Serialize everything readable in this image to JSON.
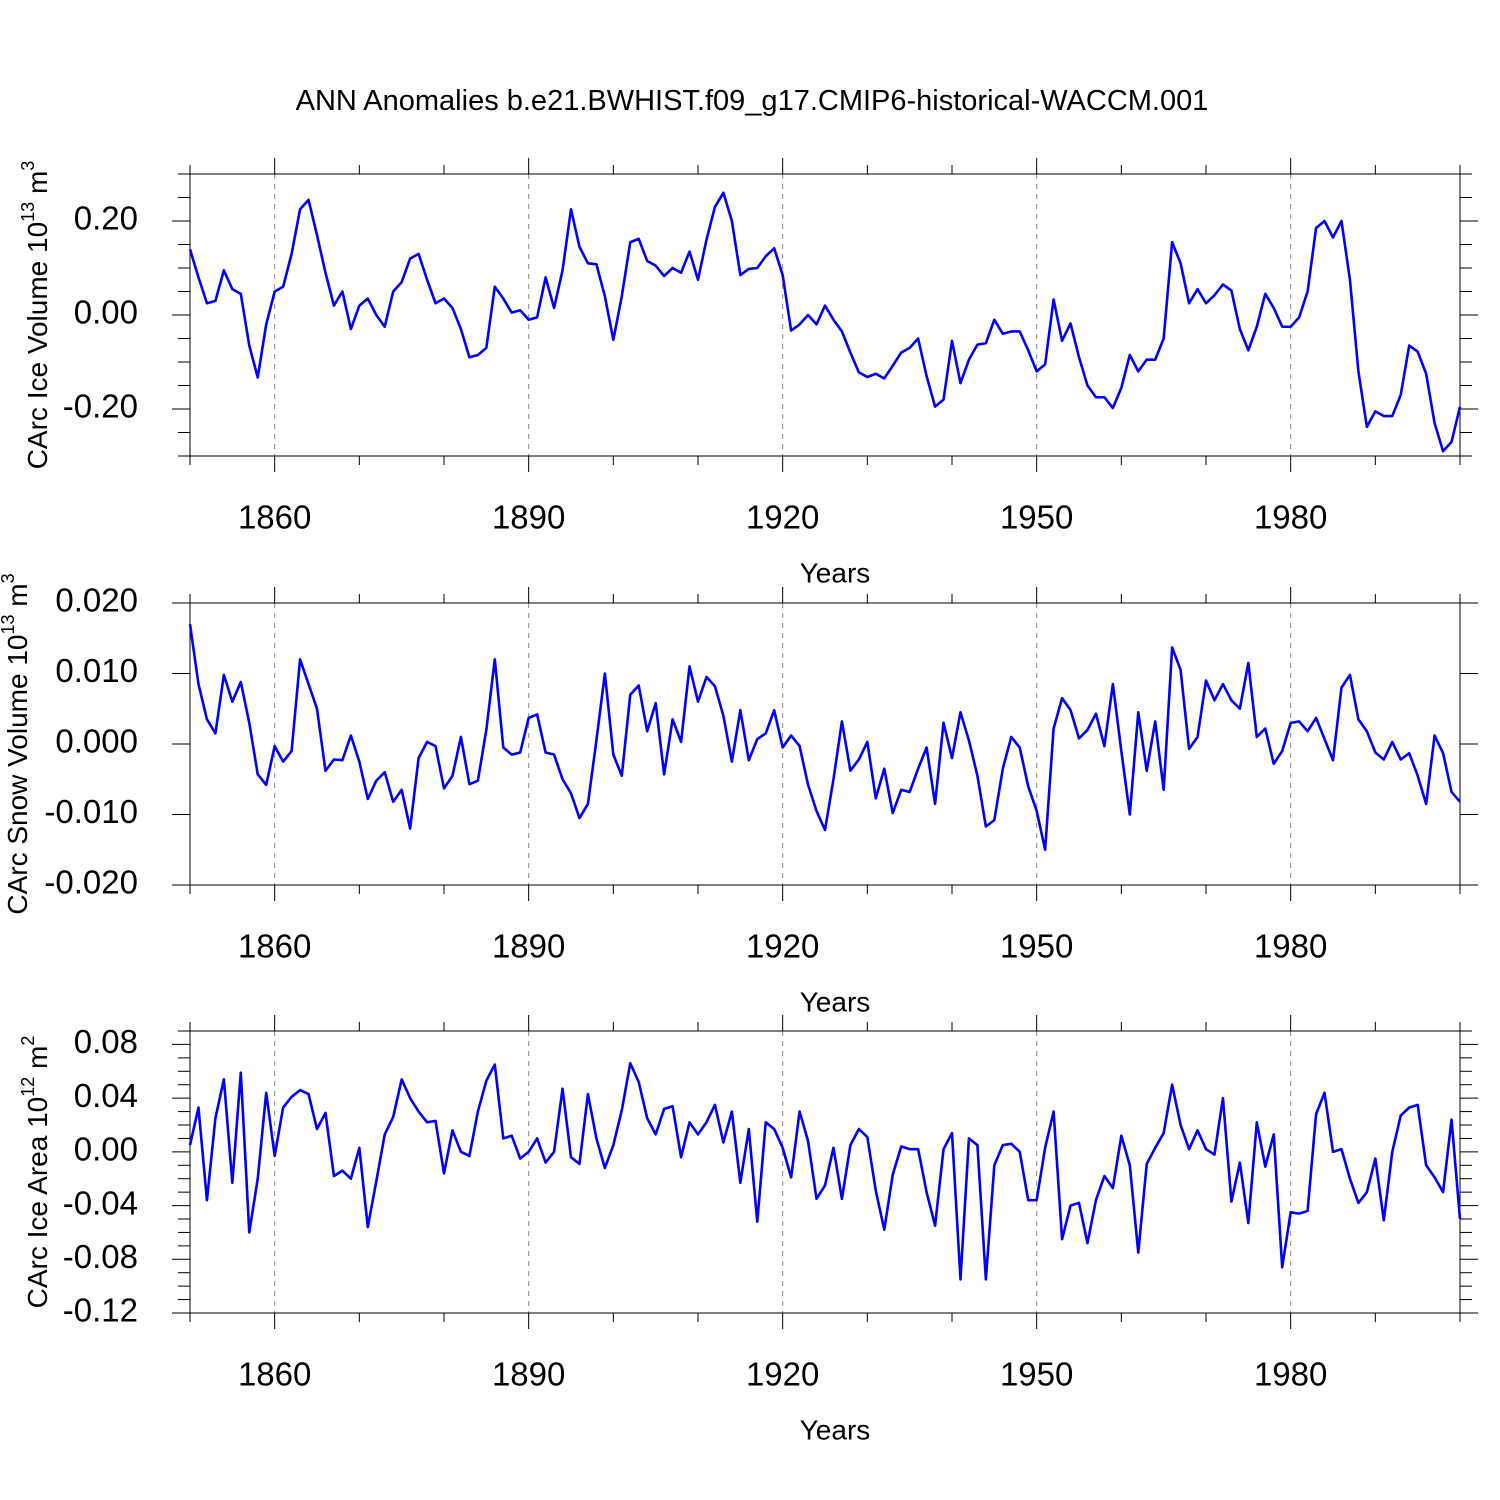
{
  "title": "ANN Anomalies b.e21.BWHIST.f09_g17.CMIP6-historical-WACCM.001",
  "colors": {
    "series": "#0000ff",
    "grid": "#888888",
    "axis": "#000000"
  },
  "chart_data": [
    {
      "type": "line",
      "ylabel": "CArc Ice Volume 10",
      "ylabel_exp": "13",
      "ylabel_unit": " m",
      "ylabel_unit_exp": "3",
      "xlabel": "Years",
      "xlim": [
        1850,
        2000
      ],
      "ylim": [
        -0.3,
        0.3
      ],
      "yticks": [
        -0.2,
        0.0,
        0.2
      ],
      "ytick_labels": [
        "-0.20",
        "0.00",
        "0.20"
      ],
      "xticks": [
        1860,
        1890,
        1920,
        1950,
        1980
      ],
      "xtick_labels": [
        "1860",
        "1890",
        "1920",
        "1950",
        "1980"
      ],
      "vgrid": [
        1860,
        1890,
        1920,
        1950,
        1980
      ],
      "x_start": 1850,
      "values": [
        0.14,
        0.08,
        0.025,
        0.03,
        0.095,
        0.055,
        0.045,
        -0.065,
        -0.133,
        -0.02,
        0.05,
        0.06,
        0.13,
        0.225,
        0.245,
        0.17,
        0.09,
        0.02,
        0.05,
        -0.03,
        0.02,
        0.035,
        0.0,
        -0.025,
        0.05,
        0.07,
        0.12,
        0.13,
        0.075,
        0.025,
        0.035,
        0.015,
        -0.03,
        -0.09,
        -0.085,
        -0.07,
        0.06,
        0.035,
        0.005,
        0.01,
        -0.01,
        -0.005,
        0.08,
        0.015,
        0.095,
        0.225,
        0.145,
        0.11,
        0.108,
        0.04,
        -0.053,
        0.04,
        0.155,
        0.162,
        0.115,
        0.105,
        0.083,
        0.1,
        0.09,
        0.135,
        0.075,
        0.16,
        0.23,
        0.26,
        0.2,
        0.085,
        0.098,
        0.1,
        0.125,
        0.142,
        0.085,
        -0.033,
        -0.02,
        0.0,
        -0.02,
        0.02,
        -0.01,
        -0.035,
        -0.08,
        -0.122,
        -0.132,
        -0.125,
        -0.135,
        -0.108,
        -0.08,
        -0.07,
        -0.05,
        -0.13,
        -0.195,
        -0.18,
        -0.055,
        -0.145,
        -0.095,
        -0.063,
        -0.06,
        -0.01,
        -0.04,
        -0.035,
        -0.035,
        -0.075,
        -0.12,
        -0.105,
        0.033,
        -0.055,
        -0.018,
        -0.09,
        -0.15,
        -0.175,
        -0.175,
        -0.198,
        -0.155,
        -0.085,
        -0.12,
        -0.095,
        -0.095,
        -0.05,
        0.155,
        0.11,
        0.025,
        0.055,
        0.025,
        0.042,
        0.065,
        0.052,
        -0.03,
        -0.075,
        -0.025,
        0.045,
        0.015,
        -0.025,
        -0.025,
        -0.005,
        0.05,
        0.185,
        0.2,
        0.165,
        0.2,
        0.075,
        -0.12,
        -0.238,
        -0.205,
        -0.215,
        -0.215,
        -0.17,
        -0.065,
        -0.078,
        -0.125,
        -0.23,
        -0.29,
        -0.27,
        -0.195
      ]
    },
    {
      "type": "line",
      "ylabel": "CArc Snow Volume 10",
      "ylabel_exp": "13",
      "ylabel_unit": " m",
      "ylabel_unit_exp": "3",
      "xlabel": "Years",
      "xlim": [
        1850,
        2000
      ],
      "ylim": [
        -0.02,
        0.02
      ],
      "yticks": [
        -0.02,
        -0.01,
        0.0,
        0.01,
        0.02
      ],
      "ytick_labels": [
        "-0.020",
        "-0.010",
        "0.000",
        "0.010",
        "0.020"
      ],
      "xticks": [
        1860,
        1890,
        1920,
        1950,
        1980
      ],
      "xtick_labels": [
        "1860",
        "1890",
        "1920",
        "1950",
        "1980"
      ],
      "vgrid": [
        1860,
        1890,
        1920,
        1950,
        1980
      ],
      "x_start": 1850,
      "values": [
        0.017,
        0.0085,
        0.0035,
        0.0015,
        0.0098,
        0.006,
        0.0088,
        0.003,
        -0.0043,
        -0.0058,
        -0.0003,
        -0.0025,
        -0.001,
        0.012,
        0.0085,
        0.005,
        -0.0038,
        -0.0022,
        -0.0023,
        0.0012,
        -0.0025,
        -0.0078,
        -0.0052,
        -0.004,
        -0.0082,
        -0.0065,
        -0.012,
        -0.002,
        0.0003,
        -0.0003,
        -0.0063,
        -0.0045,
        0.001,
        -0.0057,
        -0.0052,
        0.002,
        0.012,
        -0.0005,
        -0.0015,
        -0.0012,
        0.0037,
        0.0042,
        -0.0012,
        -0.0015,
        -0.005,
        -0.007,
        -0.0105,
        -0.0085,
        0.0005,
        0.01,
        -0.0015,
        -0.0045,
        0.007,
        0.0083,
        0.0018,
        0.0058,
        -0.0043,
        0.0035,
        0.0003,
        0.011,
        0.006,
        0.0095,
        0.0082,
        0.004,
        -0.0025,
        0.0048,
        -0.0023,
        0.0007,
        0.0015,
        0.0048,
        -0.0005,
        0.0012,
        -0.0003,
        -0.0058,
        -0.0095,
        -0.0122,
        -0.005,
        0.0032,
        -0.0038,
        -0.0022,
        0.0003,
        -0.0077,
        -0.0035,
        -0.0098,
        -0.0065,
        -0.0068,
        -0.0035,
        -0.0005,
        -0.0085,
        0.003,
        -0.002,
        0.0045,
        0.0005,
        -0.0045,
        -0.0117,
        -0.0108,
        -0.0035,
        0.001,
        -0.0005,
        -0.006,
        -0.0095,
        -0.015,
        0.0022,
        0.0065,
        0.0048,
        0.0008,
        0.002,
        0.0043,
        -0.0003,
        0.0085,
        -0.001,
        -0.01,
        0.0045,
        -0.0038,
        0.0032,
        -0.0065,
        0.0137,
        0.0105,
        -0.0007,
        0.001,
        0.009,
        0.0062,
        0.0085,
        0.0062,
        0.005,
        0.0115,
        0.001,
        0.0022,
        -0.0028,
        -0.001,
        0.003,
        0.0032,
        0.0018,
        0.0037,
        0.0007,
        -0.0023,
        0.008,
        0.0098,
        0.0035,
        0.0018,
        -0.0012,
        -0.0022,
        0.0003,
        -0.0022,
        -0.0013,
        -0.0045,
        -0.0085,
        0.0012,
        -0.0013,
        -0.0068,
        -0.0082
      ]
    },
    {
      "type": "line",
      "ylabel": "CArc Ice Area 10",
      "ylabel_exp": "12",
      "ylabel_unit": " m",
      "ylabel_unit_exp": "2",
      "xlabel": "Years",
      "xlim": [
        1850,
        2000
      ],
      "ylim": [
        -0.12,
        0.09
      ],
      "yticks": [
        -0.12,
        -0.08,
        -0.04,
        0.0,
        0.04,
        0.08
      ],
      "ytick_labels": [
        "-0.12",
        "-0.08",
        "-0.04",
        "0.00",
        "0.04",
        "0.08"
      ],
      "xticks": [
        1860,
        1890,
        1920,
        1950,
        1980
      ],
      "xtick_labels": [
        "1860",
        "1890",
        "1920",
        "1950",
        "1980"
      ],
      "vgrid": [
        1860,
        1890,
        1920,
        1950,
        1980
      ],
      "x_start": 1850,
      "values": [
        0.005,
        0.033,
        -0.036,
        0.025,
        0.054,
        -0.023,
        0.059,
        -0.06,
        -0.02,
        0.044,
        -0.003,
        0.033,
        0.041,
        0.046,
        0.043,
        0.017,
        0.029,
        -0.018,
        -0.014,
        -0.02,
        0.003,
        -0.056,
        -0.022,
        0.013,
        0.026,
        0.054,
        0.04,
        0.03,
        0.022,
        0.023,
        -0.016,
        0.016,
        0.0,
        -0.003,
        0.03,
        0.053,
        0.065,
        0.01,
        0.012,
        -0.005,
        0.0,
        0.01,
        -0.008,
        0.0,
        0.047,
        -0.004,
        -0.009,
        0.043,
        0.01,
        -0.012,
        0.005,
        0.031,
        0.066,
        0.052,
        0.025,
        0.013,
        0.032,
        0.034,
        -0.004,
        0.022,
        0.013,
        0.022,
        0.035,
        0.007,
        0.03,
        -0.023,
        0.017,
        -0.052,
        0.022,
        0.017,
        0.003,
        -0.019,
        0.03,
        0.008,
        -0.035,
        -0.025,
        0.003,
        -0.035,
        0.005,
        0.017,
        0.011,
        -0.029,
        -0.058,
        -0.017,
        0.004,
        0.002,
        0.002,
        -0.03,
        -0.055,
        0.002,
        0.014,
        -0.095,
        0.01,
        0.005,
        -0.095,
        -0.01,
        0.005,
        0.006,
        0.0,
        -0.036,
        -0.036,
        0.003,
        0.03,
        -0.065,
        -0.04,
        -0.038,
        -0.068,
        -0.036,
        -0.018,
        -0.027,
        0.012,
        -0.01,
        -0.075,
        -0.009,
        0.003,
        0.014,
        0.05,
        0.02,
        0.002,
        0.016,
        0.002,
        -0.002,
        0.04,
        -0.037,
        -0.008,
        -0.053,
        0.022,
        -0.011,
        0.013,
        -0.086,
        -0.045,
        -0.046,
        -0.044,
        0.028,
        0.044,
        0.0,
        0.002,
        -0.02,
        -0.038,
        -0.03,
        -0.005,
        -0.051,
        0.0,
        0.027,
        0.033,
        0.035,
        -0.01,
        -0.019,
        -0.03,
        0.024,
        -0.05
      ]
    }
  ]
}
